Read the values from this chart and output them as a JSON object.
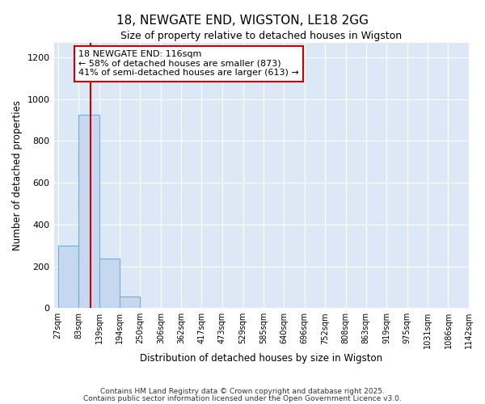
{
  "title_line1": "18, NEWGATE END, WIGSTON, LE18 2GG",
  "title_line2": "Size of property relative to detached houses in Wigston",
  "xlabel": "Distribution of detached houses by size in Wigston",
  "ylabel": "Number of detached properties",
  "bin_edges": [
    27,
    83,
    139,
    194,
    250,
    306,
    362,
    417,
    473,
    529,
    585,
    640,
    696,
    752,
    808,
    863,
    919,
    975,
    1031,
    1086,
    1142
  ],
  "bar_heights": [
    300,
    925,
    235,
    55,
    0,
    0,
    0,
    0,
    0,
    0,
    0,
    0,
    0,
    0,
    0,
    0,
    0,
    0,
    0,
    0
  ],
  "bar_color": "#c5d8ef",
  "bar_edge_color": "#7aadd4",
  "vline_x": 116,
  "vline_color": "#cc0000",
  "ylim": [
    0,
    1270
  ],
  "yticks": [
    0,
    200,
    400,
    600,
    800,
    1000,
    1200
  ],
  "annotation_text": "18 NEWGATE END: 116sqm\n← 58% of detached houses are smaller (873)\n41% of semi-detached houses are larger (613) →",
  "annotation_box_color": "#ffffff",
  "annotation_box_edge": "#cc0000",
  "plot_bg_color": "#dce8f5",
  "fig_bg_color": "#ffffff",
  "grid_color": "#ffffff",
  "footer_line1": "Contains HM Land Registry data © Crown copyright and database right 2025.",
  "footer_line2": "Contains public sector information licensed under the Open Government Licence v3.0."
}
